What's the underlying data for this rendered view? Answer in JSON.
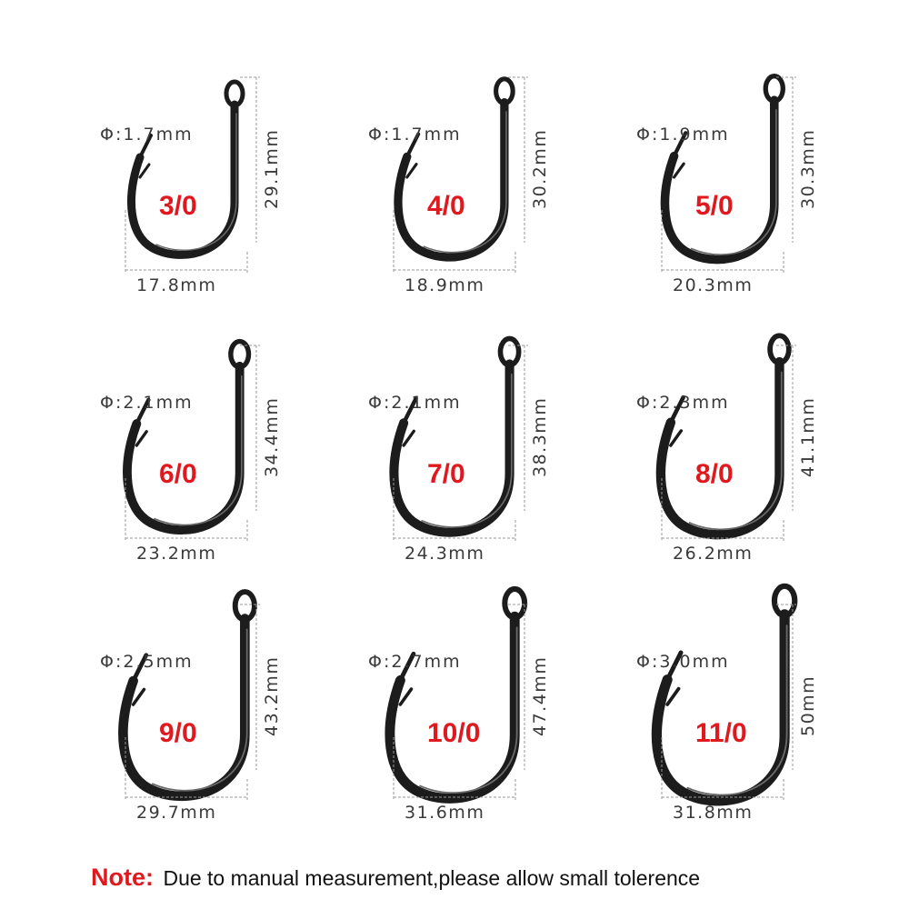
{
  "hooks": [
    {
      "size": "3/0",
      "diameter": "Φ:1.7mm",
      "length": "29.1mm",
      "width": "17.8mm"
    },
    {
      "size": "4/0",
      "diameter": "Φ:1.7mm",
      "length": "30.2mm",
      "width": "18.9mm"
    },
    {
      "size": "5/0",
      "diameter": "Φ:1.9mm",
      "length": "30.3mm",
      "width": "20.3mm"
    },
    {
      "size": "6/0",
      "diameter": "Φ:2.1mm",
      "length": "34.4mm",
      "width": "23.2mm"
    },
    {
      "size": "7/0",
      "diameter": "Φ:2.1mm",
      "length": "38.3mm",
      "width": "24.3mm"
    },
    {
      "size": "8/0",
      "diameter": "Φ:2.3mm",
      "length": "41.1mm",
      "width": "26.2mm"
    },
    {
      "size": "9/0",
      "diameter": "Φ:2.5mm",
      "length": "43.2mm",
      "width": "29.7mm"
    },
    {
      "size": "10/0",
      "diameter": "Φ:2.7mm",
      "length": "47.4mm",
      "width": "31.6mm"
    },
    {
      "size": "11/0",
      "diameter": "Φ:3.0mm",
      "length": "50mm",
      "width": "31.8mm"
    }
  ],
  "note": {
    "label": "Note:",
    "text": "Due to manual measurement,please allow small tolerence"
  },
  "colors": {
    "size_label": "#e0191f",
    "note_label": "#e0191f",
    "hook_metal": "#1c1c1c",
    "dimension_text": "#3a3a3a",
    "dimension_line": "#9a9a9a"
  }
}
